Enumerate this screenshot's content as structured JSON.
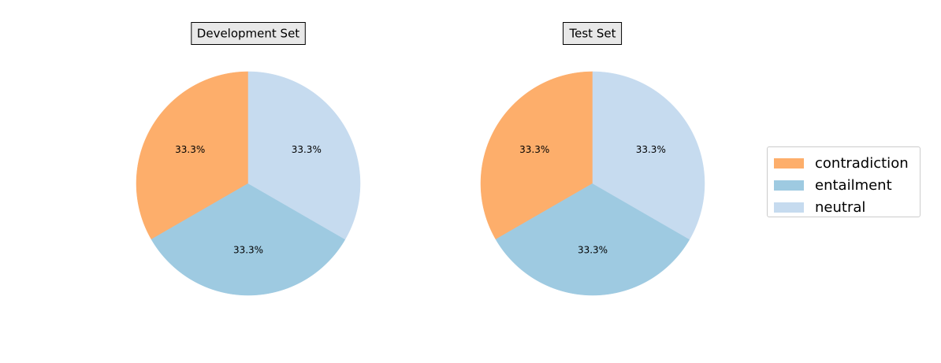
{
  "chart_data": [
    {
      "type": "pie",
      "title": "Development Set",
      "categories": [
        "contradiction",
        "entailment",
        "neutral"
      ],
      "values": [
        33.3,
        33.3,
        33.3
      ],
      "labels": [
        "33.3%",
        "33.3%",
        "33.3%"
      ],
      "colors": [
        "#fdae6b",
        "#9ecae1",
        "#c6dbef"
      ],
      "start_angle": 90,
      "direction": "counterclockwise"
    },
    {
      "type": "pie",
      "title": "Test Set",
      "categories": [
        "contradiction",
        "entailment",
        "neutral"
      ],
      "values": [
        33.3,
        33.3,
        33.3
      ],
      "labels": [
        "33.3%",
        "33.3%",
        "33.3%"
      ],
      "colors": [
        "#fdae6b",
        "#9ecae1",
        "#c6dbef"
      ],
      "start_angle": 90,
      "direction": "counterclockwise"
    }
  ],
  "legend": {
    "placement": "right",
    "entries": [
      {
        "label": "contradiction",
        "color": "#fdae6b"
      },
      {
        "label": "entailment",
        "color": "#9ecae1"
      },
      {
        "label": "neutral",
        "color": "#c6dbef"
      }
    ]
  }
}
